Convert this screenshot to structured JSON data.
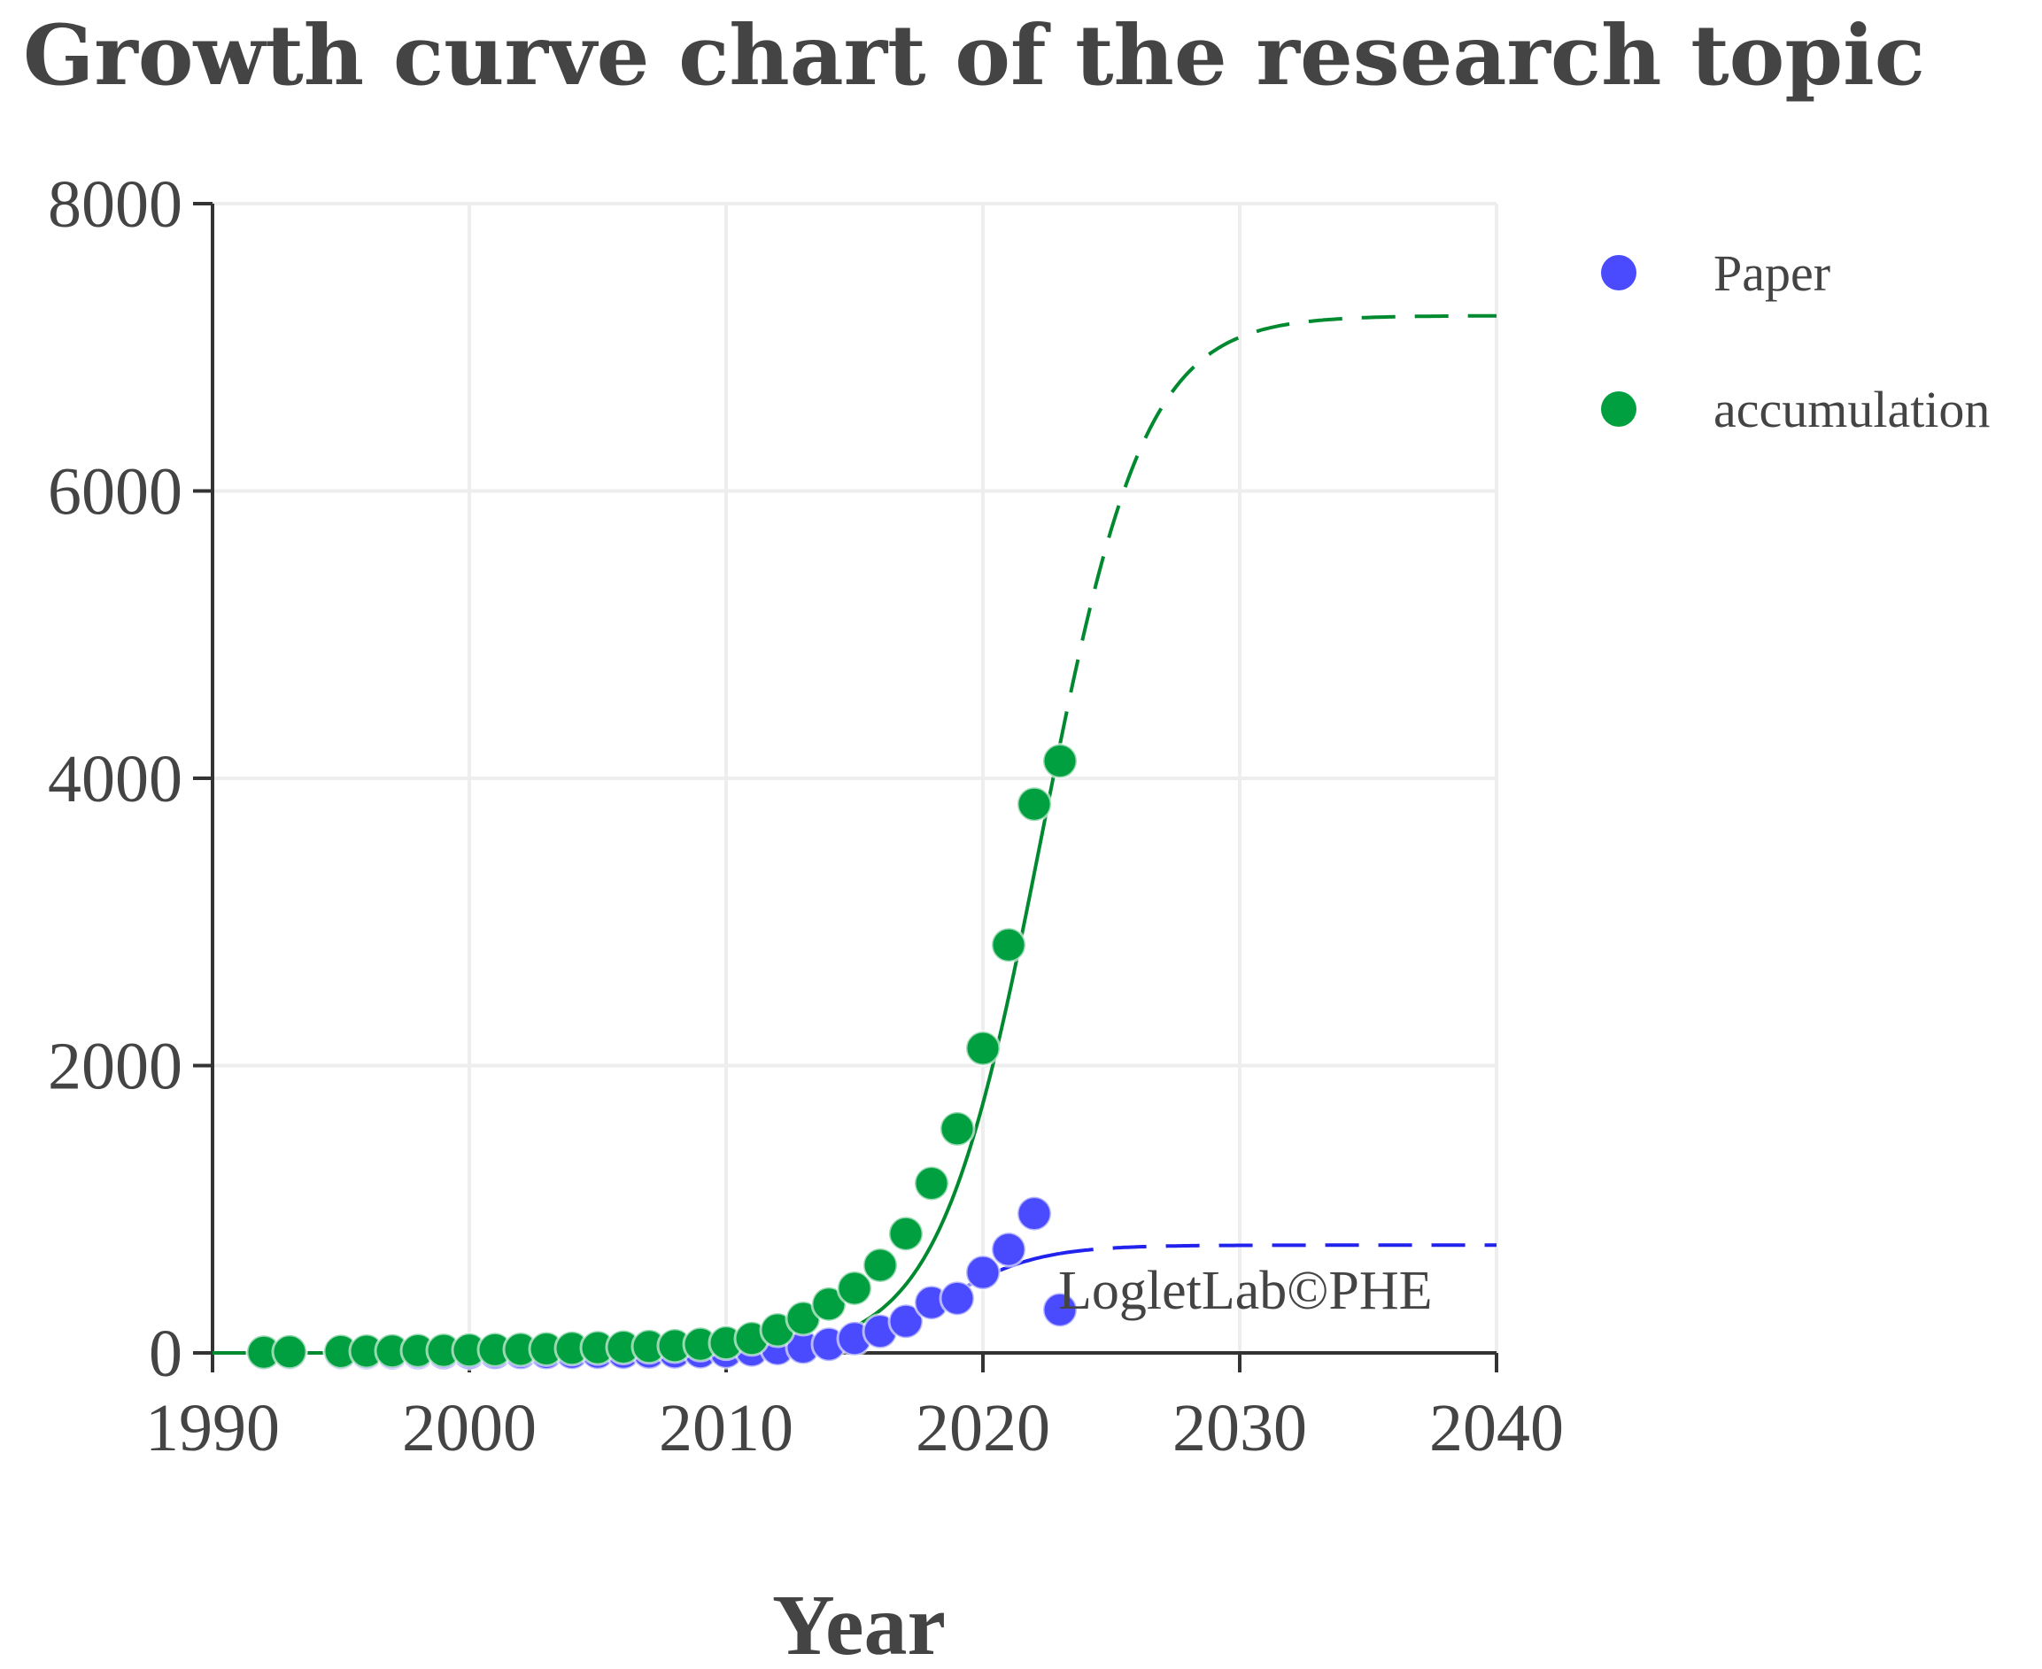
{
  "chart_data": {
    "type": "scatter",
    "title": "Growth curve chart of the research topic",
    "xlabel": "Year",
    "ylabel": "",
    "xlim": [
      1990,
      2040
    ],
    "ylim": [
      0,
      8000
    ],
    "x_ticks": [
      1990,
      2000,
      2010,
      2020,
      2030,
      2040
    ],
    "y_ticks": [
      0,
      2000,
      4000,
      6000,
      8000
    ],
    "grid": true,
    "legend_position": "top-right",
    "watermark": "LogletLab©PHE",
    "series": [
      {
        "name": "Paper",
        "color": "#4a4aff",
        "points": [
          {
            "x": 1992,
            "y": 1
          },
          {
            "x": 1993,
            "y": 2
          },
          {
            "x": 1995,
            "y": 1
          },
          {
            "x": 1996,
            "y": 1
          },
          {
            "x": 1997,
            "y": 1
          },
          {
            "x": 1998,
            "y": 2
          },
          {
            "x": 1999,
            "y": 2
          },
          {
            "x": 2000,
            "y": 2
          },
          {
            "x": 2001,
            "y": 3
          },
          {
            "x": 2002,
            "y": 3
          },
          {
            "x": 2003,
            "y": 3
          },
          {
            "x": 2004,
            "y": 4
          },
          {
            "x": 2005,
            "y": 5
          },
          {
            "x": 2006,
            "y": 5
          },
          {
            "x": 2007,
            "y": 6
          },
          {
            "x": 2008,
            "y": 7
          },
          {
            "x": 2009,
            "y": 8
          },
          {
            "x": 2010,
            "y": 10
          },
          {
            "x": 2011,
            "y": 20
          },
          {
            "x": 2012,
            "y": 30
          },
          {
            "x": 2013,
            "y": 40
          },
          {
            "x": 2014,
            "y": 60
          },
          {
            "x": 2015,
            "y": 100
          },
          {
            "x": 2016,
            "y": 150
          },
          {
            "x": 2017,
            "y": 220
          },
          {
            "x": 2018,
            "y": 350
          },
          {
            "x": 2019,
            "y": 380
          },
          {
            "x": 2020,
            "y": 560
          },
          {
            "x": 2021,
            "y": 720
          },
          {
            "x": 2022,
            "y": 970
          },
          {
            "x": 2023,
            "y": 300
          }
        ],
        "fit_curve": {
          "style": "solid to 2023, dashed after",
          "saturation": 750,
          "midpoint": 2018.5,
          "rate": 0.55
        }
      },
      {
        "name": "accumulation",
        "color": "#00a040",
        "points": [
          {
            "x": 1992,
            "y": 5
          },
          {
            "x": 1993,
            "y": 8
          },
          {
            "x": 1995,
            "y": 10
          },
          {
            "x": 1996,
            "y": 12
          },
          {
            "x": 1997,
            "y": 14
          },
          {
            "x": 1998,
            "y": 16
          },
          {
            "x": 1999,
            "y": 18
          },
          {
            "x": 2000,
            "y": 20
          },
          {
            "x": 2001,
            "y": 22
          },
          {
            "x": 2002,
            "y": 25
          },
          {
            "x": 2003,
            "y": 28
          },
          {
            "x": 2004,
            "y": 32
          },
          {
            "x": 2005,
            "y": 36
          },
          {
            "x": 2006,
            "y": 40
          },
          {
            "x": 2007,
            "y": 45
          },
          {
            "x": 2008,
            "y": 50
          },
          {
            "x": 2009,
            "y": 60
          },
          {
            "x": 2010,
            "y": 70
          },
          {
            "x": 2011,
            "y": 100
          },
          {
            "x": 2012,
            "y": 160
          },
          {
            "x": 2013,
            "y": 240
          },
          {
            "x": 2014,
            "y": 340
          },
          {
            "x": 2015,
            "y": 450
          },
          {
            "x": 2016,
            "y": 610
          },
          {
            "x": 2017,
            "y": 830
          },
          {
            "x": 2018,
            "y": 1180
          },
          {
            "x": 2019,
            "y": 1560
          },
          {
            "x": 2020,
            "y": 2120
          },
          {
            "x": 2021,
            "y": 2840
          },
          {
            "x": 2022,
            "y": 3820
          },
          {
            "x": 2023,
            "y": 4120
          }
        ],
        "fit_curve": {
          "style": "solid to 2023, dashed after",
          "saturation": 7220,
          "midpoint": 2022.3,
          "rate": 0.5
        }
      }
    ]
  }
}
